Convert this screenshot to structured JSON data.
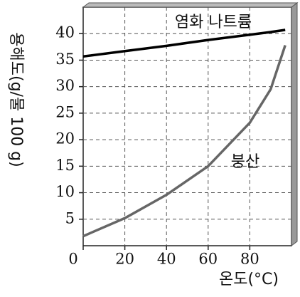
{
  "chart_data": {
    "type": "line",
    "y_label": "용해도(g/물 100 g)",
    "x_label": "온도(°C)",
    "x": [
      0,
      20,
      40,
      60,
      80,
      90,
      97
    ],
    "series": [
      {
        "name": "염화 나트륨",
        "color": "#000000",
        "values": [
          35.7,
          36.7,
          37.7,
          38.8,
          39.8,
          40.3,
          40.7
        ]
      },
      {
        "name": "붕산",
        "color": "#666666",
        "values": [
          1.8,
          5.2,
          9.6,
          15,
          23.2,
          29.5,
          37.8
        ]
      }
    ],
    "xlim": [
      0,
      100
    ],
    "ylim": [
      0,
      45
    ],
    "xticks": [
      0,
      20,
      40,
      60,
      80
    ],
    "yticks": [
      5,
      10,
      15,
      20,
      25,
      30,
      35,
      40
    ],
    "grid": true
  }
}
